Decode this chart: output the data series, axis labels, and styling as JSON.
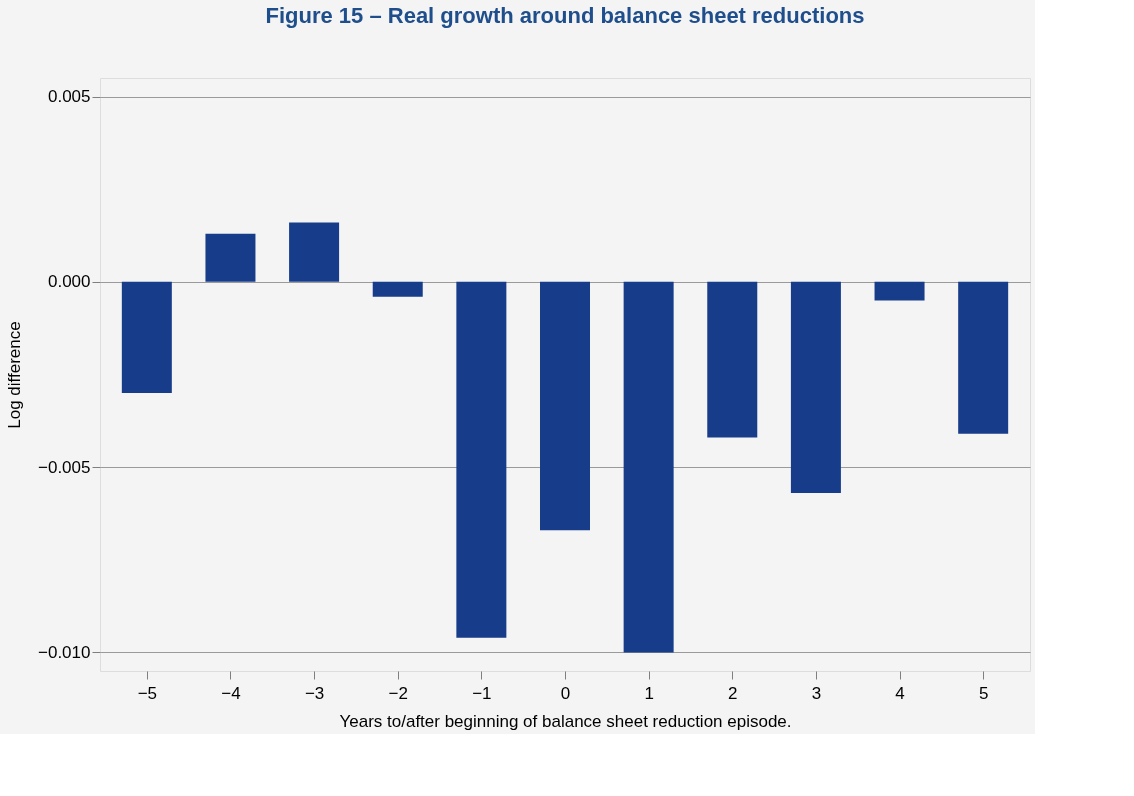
{
  "chart_data": {
    "type": "bar",
    "title": "Figure 15 – Real growth around balance sheet reductions",
    "xlabel": "Years to/after beginning of balance sheet reduction episode.",
    "ylabel": "Log difference",
    "categories": [
      "−5",
      "−4",
      "−3",
      "−2",
      "−1",
      "0",
      "1",
      "2",
      "3",
      "4",
      "5"
    ],
    "series": [
      {
        "color": "#173c8a",
        "values": [
          -0.003,
          0.0013,
          0.0016,
          -0.0004,
          -0.0096,
          -0.0067,
          -0.01,
          -0.0042,
          -0.0057,
          -0.0005,
          -0.0041
        ]
      }
    ],
    "ylim": [
      -0.0105,
      0.0055
    ],
    "yticks": [
      {
        "value": 0.005,
        "label": "0.005"
      },
      {
        "value": 0,
        "label": "0.000"
      },
      {
        "value": -0.005,
        "label": "−0.005"
      },
      {
        "value": -0.01,
        "label": "−0.010"
      }
    ],
    "grid": "y",
    "legend": false
  }
}
